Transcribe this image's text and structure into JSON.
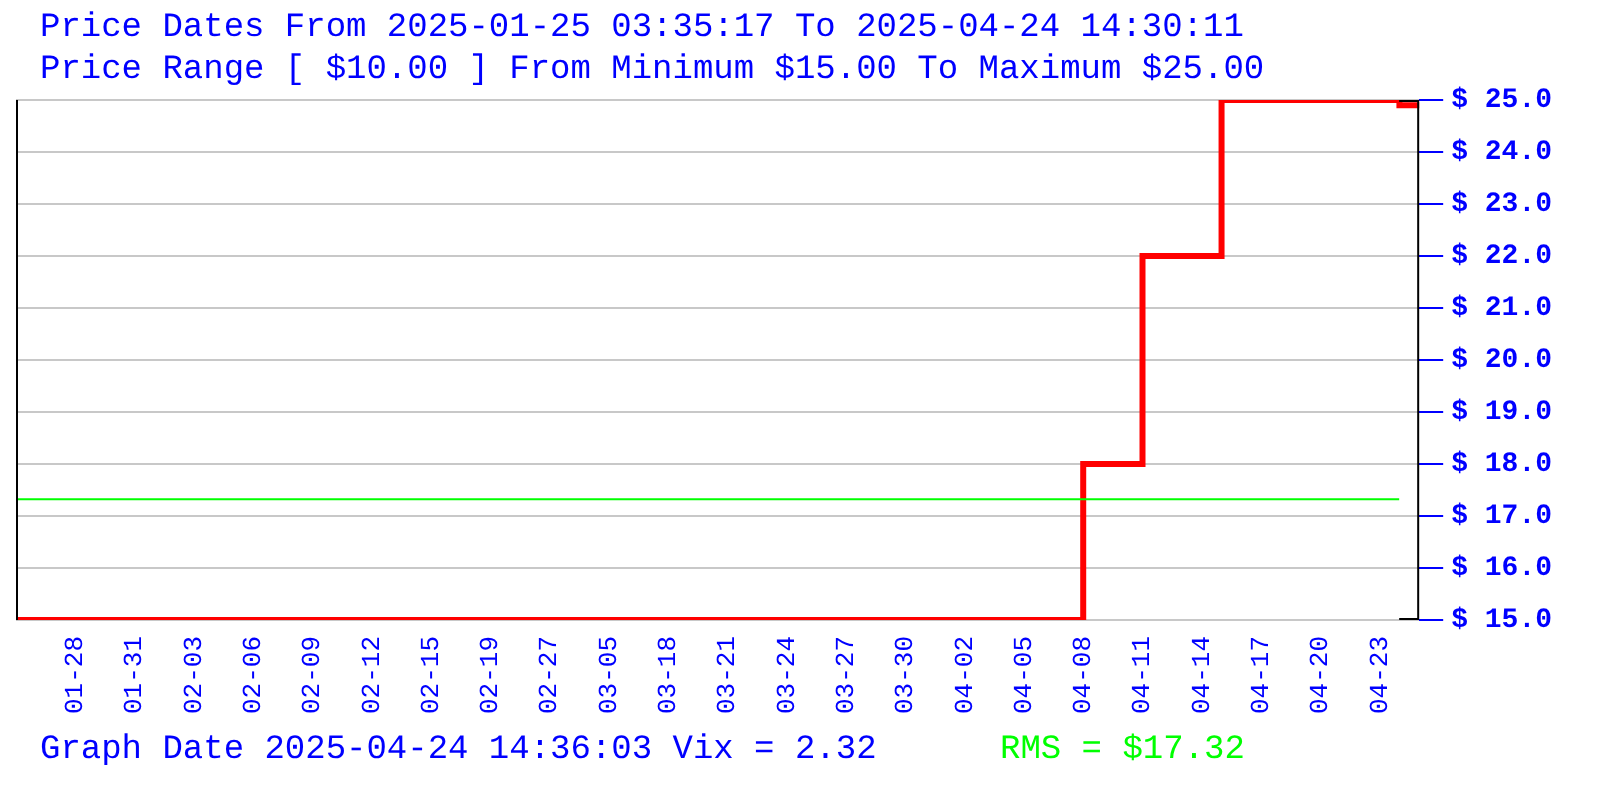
{
  "chart_data": {
    "type": "step",
    "title": "Price Dates From 2025-01-25 03:35:17 To 2025-04-24 14:30:11",
    "subtitle": "Price Range [ $10.00 ] From Minimum $15.00 To Maximum $25.00",
    "categories": [
      null,
      null,
      null,
      "01-28",
      null,
      null,
      "01-31",
      null,
      null,
      "02-03",
      null,
      null,
      "02-06",
      null,
      null,
      "02-09",
      null,
      null,
      "02-12",
      null,
      null,
      "02-15",
      null,
      null,
      "02-19",
      null,
      null,
      "02-27",
      null,
      null,
      "03-05",
      null,
      null,
      "03-18",
      null,
      null,
      "03-21",
      null,
      null,
      "03-24",
      null,
      null,
      "03-27",
      null,
      null,
      "03-30",
      null,
      null,
      "04-02",
      null,
      null,
      "04-05",
      null,
      null,
      "04-08",
      null,
      null,
      "04-11",
      null,
      null,
      "04-14",
      null,
      null,
      "04-17",
      null,
      null,
      "04-20",
      null,
      null,
      "04-23",
      null,
      null
    ],
    "series": [
      {
        "color": "#ff0000",
        "values": [
          15,
          15,
          15,
          15,
          15,
          15,
          15,
          15,
          15,
          15,
          15,
          15,
          15,
          15,
          15,
          15,
          15,
          15,
          15,
          15,
          15,
          15,
          15,
          15,
          15,
          15,
          15,
          15,
          15,
          15,
          15,
          15,
          15,
          15,
          15,
          15,
          15,
          15,
          15,
          15,
          15,
          15,
          15,
          15,
          15,
          15,
          15,
          15,
          15,
          15,
          15,
          15,
          15,
          15,
          18,
          18,
          18,
          22,
          22,
          22,
          22,
          25,
          25,
          25,
          25,
          25,
          25,
          25,
          25,
          25,
          24.9,
          24.9
        ]
      }
    ],
    "ylim": [
      15,
      25
    ],
    "yticks": [
      {
        "value": 15,
        "label": "$ 15.0"
      },
      {
        "value": 16,
        "label": "$ 16.0"
      },
      {
        "value": 17,
        "label": "$ 17.0"
      },
      {
        "value": 18,
        "label": "$ 18.0"
      },
      {
        "value": 19,
        "label": "$ 19.0"
      },
      {
        "value": 20,
        "label": "$ 20.0"
      },
      {
        "value": 21,
        "label": "$ 21.0"
      },
      {
        "value": 22,
        "label": "$ 22.0"
      },
      {
        "value": 23,
        "label": "$ 23.0"
      },
      {
        "value": 24,
        "label": "$ 24.0"
      },
      {
        "value": 25,
        "label": "$ 25.0"
      }
    ],
    "grid": "y",
    "legend": false,
    "ref_lines": [
      {
        "axis": "y",
        "value": 17.32,
        "label": "RMS = $17.32",
        "color": "#00ff00"
      }
    ],
    "annotations": [
      "Graph Date 2025-04-24 14:36:03 Vix = 2.32"
    ]
  }
}
